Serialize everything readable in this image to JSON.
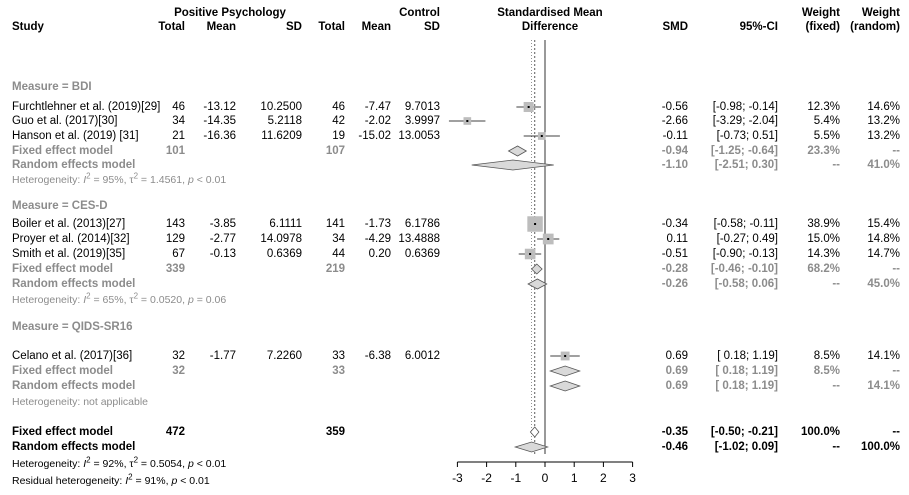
{
  "headers": {
    "study": "Study",
    "pos_group": "Positive Psychology",
    "ctrl_group": "Control",
    "total": "Total",
    "mean": "Mean",
    "sd": "SD",
    "smd_title_1": "Standardised Mean",
    "smd_title_2": "Difference",
    "smd": "SMD",
    "ci": "95%-CI",
    "weight": "Weight",
    "fixed": "(fixed)",
    "random": "(random)"
  },
  "footer": {
    "fixed_label": "Fixed effect model",
    "random_label": "Random effects model",
    "fixed_pos_total": "472",
    "fixed_ctrl_total": "359",
    "fixed_smd": "-0.35",
    "fixed_ci": "[-0.50; -0.21]",
    "fixed_w_fixed": "100.0%",
    "fixed_w_random": "--",
    "random_smd": "-0.46",
    "random_ci": "[-1.02; 0.09]",
    "random_w_fixed": "--",
    "random_w_random": "100.0%",
    "het_prefix": "Heterogeneity: ",
    "het_i2": "I",
    "het_text": " = 92%, τ",
    "het_text2": " = 0.5054, ",
    "het_p": "p",
    "het_pval": " < 0.01",
    "resid_prefix": "Residual heterogeneity: ",
    "resid_text": " = 91%, ",
    "resid_pval": " < 0.01"
  },
  "chart_data": {
    "type": "forest",
    "xlim": [
      -3,
      3
    ],
    "xticks": [
      "-3",
      "-2",
      "-1",
      "0",
      "1",
      "2",
      "3"
    ],
    "reference_line": 0,
    "groups": [
      {
        "label": "Measure = BDI",
        "studies": [
          {
            "name": "Furchtlehner et al. (2019)[29]",
            "pos_total": "46",
            "pos_mean": "-13.12",
            "pos_sd": "10.2500",
            "ctrl_total": "46",
            "ctrl_mean": "-7.47",
            "ctrl_sd": "9.7013",
            "smd": -0.56,
            "lo": -0.98,
            "hi": -0.14,
            "smd_text": "-0.56",
            "ci_text": "[-0.98; -0.14]",
            "w_fixed": "12.3%",
            "w_random": "14.6%",
            "weight": 12.3
          },
          {
            "name": "Guo et al. (2017)[30]",
            "pos_total": "34",
            "pos_mean": "-14.35",
            "pos_sd": "5.2118",
            "ctrl_total": "42",
            "ctrl_mean": "-2.02",
            "ctrl_sd": "3.9997",
            "smd": -2.66,
            "lo": -3.29,
            "hi": -2.04,
            "smd_text": "-2.66",
            "ci_text": "[-3.29; -2.04]",
            "w_fixed": "5.4%",
            "w_random": "13.2%",
            "weight": 5.4
          },
          {
            "name": "Hanson et al. (2019) [31]",
            "pos_total": "21",
            "pos_mean": "-16.36",
            "pos_sd": "11.6209",
            "ctrl_total": "19",
            "ctrl_mean": "-15.02",
            "ctrl_sd": "13.0053",
            "smd": -0.11,
            "lo": -0.73,
            "hi": 0.51,
            "smd_text": "-0.11",
            "ci_text": "[-0.73; 0.51]",
            "w_fixed": "5.5%",
            "w_random": "13.2%",
            "weight": 5.5
          }
        ],
        "fixed": {
          "pos_total": "101",
          "ctrl_total": "107",
          "smd": -0.94,
          "lo": -1.25,
          "hi": -0.64,
          "smd_text": "-0.94",
          "ci_text": "[-1.25; -0.64]",
          "w_fixed": "23.3%",
          "w_random": "--"
        },
        "random": {
          "smd": -1.1,
          "lo": -2.51,
          "hi": 0.3,
          "smd_text": "-1.10",
          "ci_text": "[-2.51; 0.30]",
          "w_fixed": "--",
          "w_random": "41.0%"
        },
        "het": {
          "i2": "95%",
          "tau2": "1.4561",
          "p": "< 0.01"
        }
      },
      {
        "label": "Measure = CES-D",
        "studies": [
          {
            "name": "Boiler et al. (2013)[27]",
            "pos_total": "143",
            "pos_mean": "-3.85",
            "pos_sd": "6.1111",
            "ctrl_total": "141",
            "ctrl_mean": "-1.73",
            "ctrl_sd": "6.1786",
            "smd": -0.34,
            "lo": -0.58,
            "hi": -0.11,
            "smd_text": "-0.34",
            "ci_text": "[-0.58; -0.11]",
            "w_fixed": "38.9%",
            "w_random": "15.4%",
            "weight": 38.9
          },
          {
            "name": "Proyer et al. (2014)[32]",
            "pos_total": "129",
            "pos_mean": "-2.77",
            "pos_sd": "14.0978",
            "ctrl_total": "34",
            "ctrl_mean": "-4.29",
            "ctrl_sd": "13.4888",
            "smd": 0.11,
            "lo": -0.27,
            "hi": 0.49,
            "smd_text": "0.11",
            "ci_text": "[-0.27; 0.49]",
            "w_fixed": "15.0%",
            "w_random": "14.8%",
            "weight": 15.0
          },
          {
            "name": "Smith et al. (2019)[35]",
            "pos_total": "67",
            "pos_mean": "-0.13",
            "pos_sd": "0.6369",
            "ctrl_total": "44",
            "ctrl_mean": "0.20",
            "ctrl_sd": "0.6369",
            "smd": -0.51,
            "lo": -0.9,
            "hi": -0.13,
            "smd_text": "-0.51",
            "ci_text": "[-0.90; -0.13]",
            "w_fixed": "14.3%",
            "w_random": "14.7%",
            "weight": 14.3
          }
        ],
        "fixed": {
          "pos_total": "339",
          "ctrl_total": "219",
          "smd": -0.28,
          "lo": -0.46,
          "hi": -0.1,
          "smd_text": "-0.28",
          "ci_text": "[-0.46; -0.10]",
          "w_fixed": "68.2%",
          "w_random": "--"
        },
        "random": {
          "smd": -0.26,
          "lo": -0.58,
          "hi": 0.06,
          "smd_text": "-0.26",
          "ci_text": "[-0.58; 0.06]",
          "w_fixed": "--",
          "w_random": "45.0%"
        },
        "het": {
          "i2": "65%",
          "tau2": "0.0520",
          "p": "= 0.06"
        }
      },
      {
        "label": "Measure = QIDS-SR16",
        "studies": [
          {
            "name": "Celano et al. (2017)[36]",
            "pos_total": "32",
            "pos_mean": "-1.77",
            "pos_sd": "7.2260",
            "ctrl_total": "33",
            "ctrl_mean": "-6.38",
            "ctrl_sd": "6.0012",
            "smd": 0.69,
            "lo": 0.18,
            "hi": 1.19,
            "smd_text": "0.69",
            "ci_text": "[ 0.18; 1.19]",
            "w_fixed": "8.5%",
            "w_random": "14.1%",
            "weight": 8.5
          }
        ],
        "fixed": {
          "pos_total": "32",
          "ctrl_total": "33",
          "smd": 0.69,
          "lo": 0.18,
          "hi": 1.19,
          "smd_text": "0.69",
          "ci_text": "[ 0.18; 1.19]",
          "w_fixed": "8.5%",
          "w_random": "--"
        },
        "random": {
          "smd": 0.69,
          "lo": 0.18,
          "hi": 1.19,
          "smd_text": "0.69",
          "ci_text": "[ 0.18; 1.19]",
          "w_fixed": "--",
          "w_random": "14.1%"
        },
        "het": {
          "text": "Heterogeneity: not applicable"
        }
      }
    ],
    "overall": {
      "fixed": {
        "smd": -0.35,
        "lo": -0.5,
        "hi": -0.21
      },
      "random": {
        "smd": -0.46,
        "lo": -1.02,
        "hi": 0.09
      }
    },
    "colors": {
      "study_box": "#bdbdbd",
      "diamond_fill": "#d9d9d9",
      "subgroup_text": "#8c8c8c"
    }
  }
}
